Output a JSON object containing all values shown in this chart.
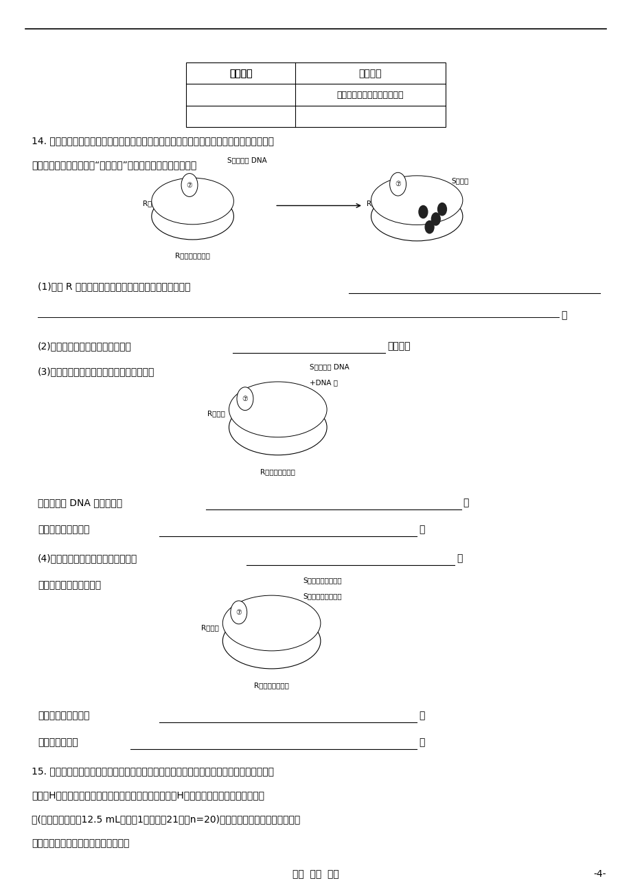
{
  "bg_color": "#ffffff",
  "page_number": "-4-",
  "footer_text": "用心  爱心  专心",
  "table_col1_header": "实验结果",
  "table_col2_header": "实验结论",
  "table_row2_col2": "赖氨酸不是大鼠的必需氨基酸",
  "q14_line1": "14. 如图为肺炎双球菌转化实验的部分图解，该实验是在格里菲思肺炎双球菌转化实验的基础",
  "q14_line2": "上进行的，其目的是证明“转化因子”的化学成分。请据图回答：",
  "q1_text": "(1)在对 R 型细菌进行培养之前，必须首先进行的工作是",
  "q2_text": "(2)依据上面实验的图解，可以作出",
  "q2_suffix": "的假设。",
  "q3_text": "(3)为验证上面的假设，设计了下面的实验：",
  "q3a_text": "该实验中加 DNA 酶的目的是",
  "q3b_text": "观察到的实验现象是",
  "q4_text": "(4)通过上面两步实验，仍然不能说明",
  "q4b_text": "为此设计了下面的实验：",
  "q4c_text": "观察到的实验现象是",
  "q4d_text": "该实验能够说明",
  "q15_line1": "15. 环境激素是指由于人类的生产和生活活动而排放到周围环境中的某些化学物质。为研究环",
  "q15_line2": "境激素H对小鼠产生精子数的影响，用玉米油和环境激素H分别处理对照组和实验组雄性小",
  "q15_line3": "鼠(每千克体重注射12.5 mL，每天1次，连续21天，n=20)。实验结束后，对每只小鼠产生",
  "q15_line4": "的精子计数。实验内容及结果见下表："
}
